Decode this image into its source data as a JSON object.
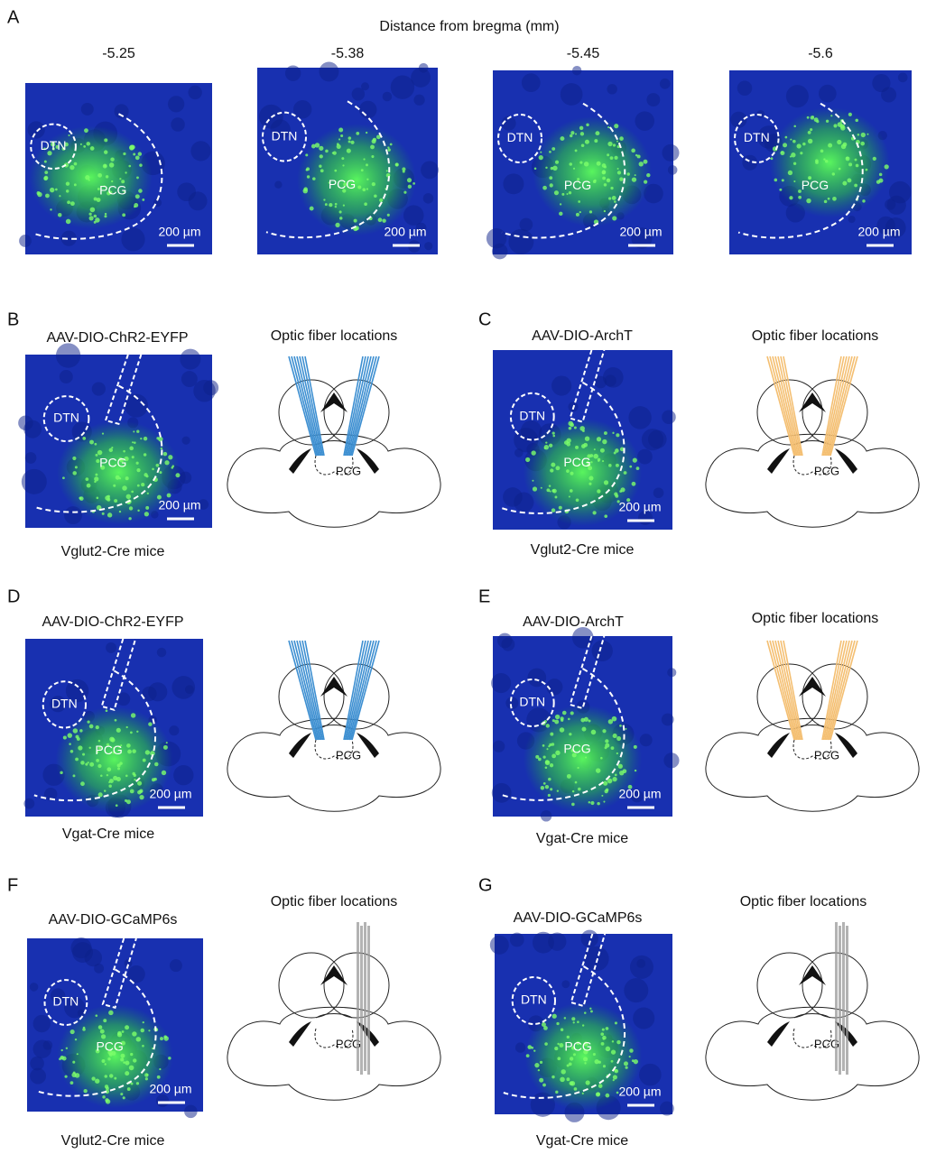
{
  "panels": [
    {
      "label": "A",
      "title": "Distance from bregma (mm)",
      "sections": [
        {
          "distance": "-5.25",
          "dtn": "DTN",
          "pcg": "PCG",
          "scale": "200 µm"
        },
        {
          "distance": "-5.38",
          "dtn": "DTN",
          "pcg": "PCG",
          "scale": "200 µm"
        },
        {
          "distance": "-5.45",
          "dtn": "DTN",
          "pcg": "PCG",
          "scale": "200 µm"
        },
        {
          "distance": "-5.6",
          "dtn": "DTN",
          "pcg": "PCG",
          "scale": "200 µm"
        }
      ]
    },
    {
      "label": "B",
      "virus": "AAV-DIO-ChR2-EYFP",
      "dtn": "DTN",
      "pcg": "PCG",
      "scale": "200 µm",
      "mice": "Vglut2-Cre mice",
      "schematic_title": "Optic fiber locations",
      "schematic_label": "PCG",
      "fiber_color": "#3d8fd1"
    },
    {
      "label": "C",
      "virus": "AAV-DIO-ArchT",
      "dtn": "DTN",
      "pcg": "PCG",
      "scale": "200 µm",
      "mice": "Vglut2-Cre mice",
      "schematic_title": "Optic fiber locations",
      "schematic_label": "PCG",
      "fiber_color": "#f4bf72"
    },
    {
      "label": "D",
      "virus": "AAV-DIO-ChR2-EYFP",
      "dtn": "DTN",
      "pcg": "PCG",
      "scale": "200 µm",
      "mice": "Vgat-Cre mice",
      "schematic_label": "PCG",
      "fiber_color": "#3d8fd1"
    },
    {
      "label": "E",
      "virus": "AAV-DIO-ArchT",
      "dtn": "DTN",
      "pcg": "PCG",
      "scale": "200 µm",
      "mice": "Vgat-Cre mice",
      "schematic_title": "Optic fiber locations",
      "schematic_label": "PCG",
      "fiber_color": "#f4bf72"
    },
    {
      "label": "F",
      "virus": "AAV-DIO-GCaMP6s",
      "dtn": "DTN",
      "pcg": "PCG",
      "scale": "200 µm",
      "mice": "Vglut2-Cre mice",
      "schematic_title": "Optic fiber locations",
      "schematic_label": "PCG",
      "fiber_color": "#9a9a9a"
    },
    {
      "label": "G",
      "virus": "AAV-DIO-GCaMP6s",
      "dtn": "DTN",
      "pcg": "PCG",
      "scale": "200 µm",
      "mice": "Vgat-Cre mice",
      "schematic_title": "Optic fiber locations",
      "schematic_label": "PCG",
      "fiber_color": "#9a9a9a"
    }
  ]
}
